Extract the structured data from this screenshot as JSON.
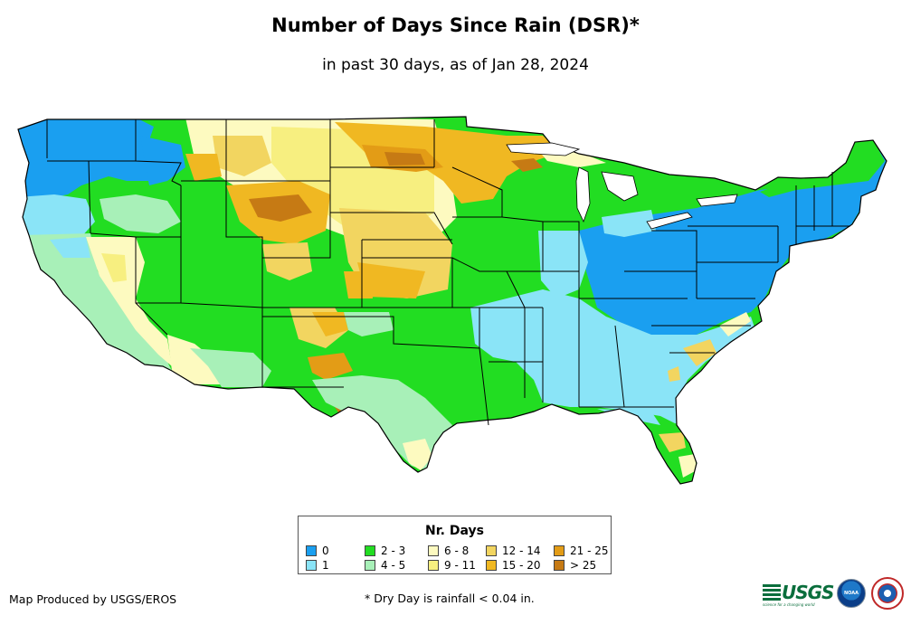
{
  "title": "Number of Days Since Rain (DSR)*",
  "subtitle": "in past 30 days, as of Jan 28, 2024",
  "legend": {
    "title": "Nr. Days",
    "items": [
      {
        "label": "0",
        "color": "#1a9ff0"
      },
      {
        "label": "1",
        "color": "#8ae4f7"
      },
      {
        "label": "2 - 3",
        "color": "#22dd22"
      },
      {
        "label": "4 - 5",
        "color": "#a8f0b8"
      },
      {
        "label": "6 - 8",
        "color": "#fdfac0"
      },
      {
        "label": "9 - 11",
        "color": "#f7ef80"
      },
      {
        "label": "12 - 14",
        "color": "#f2d560"
      },
      {
        "label": "15 - 20",
        "color": "#f0b822"
      },
      {
        "label": "21 - 25",
        "color": "#e39c16"
      },
      {
        "label": "> 25",
        "color": "#c67a14"
      }
    ]
  },
  "credit": "Map Produced by USGS/EROS",
  "footnote": "* Dry Day is rainfall < 0.04 in.",
  "logos": {
    "usgs": "USGS",
    "usgs_tagline": "science for a changing world",
    "noaa": "NOAA",
    "nws": "NWS"
  }
}
